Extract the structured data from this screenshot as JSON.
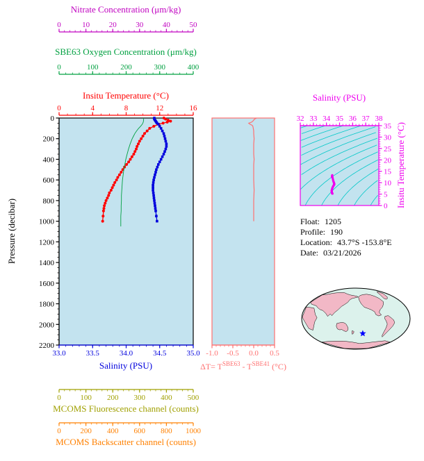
{
  "info": {
    "rows": [
      {
        "label": "Float:",
        "value": "1205"
      },
      {
        "label": "Profile:",
        "value": "190"
      },
      {
        "label": "Location:",
        "value": "43.7°S -153.8°E"
      },
      {
        "label": "Date:",
        "value": "03/21/2026"
      }
    ]
  },
  "map": {
    "star_lon": -153.8,
    "star_lat": -43.7
  },
  "colors": {
    "nitrate": "#c000c0",
    "oxygen": "#00a040",
    "temperature": "#ff0000",
    "salinity": "#0000dd",
    "fluorescence": "#a0a000",
    "backscatter": "#ff8000",
    "deltaT": "#ff7070",
    "ts": "#ee00ee",
    "pressure": "#000000",
    "plot_bg": "#c3e3ef",
    "contour": "#00c8c8",
    "map_land": "#f2b8c6",
    "map_ocean": "#dcf2ec",
    "star": "#0000ff"
  },
  "chart_data": [
    {
      "type": "line",
      "name": "profile-plot",
      "ylabel": "Pressure (decibar)",
      "ylim": [
        0,
        2200
      ],
      "yticks": [
        "0",
        "200",
        "400",
        "600",
        "800",
        "1000",
        "1200",
        "1400",
        "1600",
        "1800",
        "2000",
        "2200"
      ],
      "axes": {
        "nitrate": {
          "label": "Nitrate Concentration (μm/kg)",
          "lim": [
            0,
            50
          ],
          "ticks": [
            "0",
            "10",
            "20",
            "30",
            "40",
            "50"
          ]
        },
        "oxygen": {
          "label": "SBE63 Oxygen Concentration (μm/kg)",
          "lim": [
            0,
            400
          ],
          "ticks": [
            "0",
            "100",
            "200",
            "300",
            "400"
          ]
        },
        "temperature": {
          "label": "Insitu Temperature (°C)",
          "lim": [
            0,
            16
          ],
          "ticks": [
            "0",
            "4",
            "8",
            "12",
            "16"
          ]
        },
        "salinity": {
          "label": "Salinity (PSU)",
          "lim": [
            33,
            35
          ],
          "ticks": [
            "33.0",
            "33.5",
            "34.0",
            "34.5",
            "35.0"
          ]
        },
        "fluorescence": {
          "label": "MCOMS Fluorescence channel (counts)",
          "lim": [
            0,
            500
          ],
          "ticks": [
            "0",
            "100",
            "200",
            "300",
            "400",
            "500"
          ]
        },
        "backscatter": {
          "label": "MCOMS Backscatter channel (counts)",
          "lim": [
            0,
            1000
          ],
          "ticks": [
            "0",
            "200",
            "400",
            "600",
            "800",
            "1000"
          ]
        }
      },
      "series": [
        {
          "name": "temperature",
          "axis": "temperature",
          "marker": "circle",
          "points": [
            [
              0,
              12.5
            ],
            [
              10,
              12.7
            ],
            [
              20,
              13.0
            ],
            [
              30,
              13.3
            ],
            [
              40,
              12.9
            ],
            [
              50,
              12.4
            ],
            [
              60,
              11.9
            ],
            [
              80,
              11.3
            ],
            [
              100,
              10.8
            ],
            [
              125,
              10.5
            ],
            [
              150,
              10.2
            ],
            [
              175,
              10.0
            ],
            [
              200,
              9.8
            ],
            [
              225,
              9.6
            ],
            [
              250,
              9.45
            ],
            [
              275,
              9.3
            ],
            [
              300,
              9.2
            ],
            [
              325,
              9.05
            ],
            [
              350,
              8.9
            ],
            [
              375,
              8.7
            ],
            [
              400,
              8.5
            ],
            [
              425,
              8.3
            ],
            [
              450,
              8.05
            ],
            [
              475,
              7.8
            ],
            [
              500,
              7.6
            ],
            [
              525,
              7.4
            ],
            [
              550,
              7.2
            ],
            [
              575,
              7.0
            ],
            [
              600,
              6.85
            ],
            [
              625,
              6.65
            ],
            [
              650,
              6.5
            ],
            [
              675,
              6.35
            ],
            [
              700,
              6.2
            ],
            [
              725,
              6.0
            ],
            [
              750,
              5.9
            ],
            [
              775,
              5.75
            ],
            [
              800,
              5.6
            ],
            [
              825,
              5.5
            ],
            [
              850,
              5.4
            ],
            [
              875,
              5.35
            ],
            [
              900,
              5.3
            ],
            [
              950,
              5.25
            ],
            [
              1000,
              5.2
            ]
          ]
        },
        {
          "name": "salinity",
          "axis": "salinity",
          "marker": "square",
          "points": [
            [
              0,
              34.42
            ],
            [
              10,
              34.42
            ],
            [
              20,
              34.43
            ],
            [
              30,
              34.44
            ],
            [
              40,
              34.45
            ],
            [
              50,
              34.46
            ],
            [
              60,
              34.48
            ],
            [
              80,
              34.5
            ],
            [
              100,
              34.52
            ],
            [
              125,
              34.54
            ],
            [
              150,
              34.56
            ],
            [
              175,
              34.57
            ],
            [
              200,
              34.58
            ],
            [
              225,
              34.59
            ],
            [
              250,
              34.6
            ],
            [
              275,
              34.6
            ],
            [
              300,
              34.59
            ],
            [
              325,
              34.575
            ],
            [
              350,
              34.56
            ],
            [
              375,
              34.54
            ],
            [
              400,
              34.52
            ],
            [
              425,
              34.5
            ],
            [
              450,
              34.48
            ],
            [
              475,
              34.465
            ],
            [
              500,
              34.45
            ],
            [
              525,
              34.44
            ],
            [
              550,
              34.43
            ],
            [
              575,
              34.42
            ],
            [
              600,
              34.41
            ],
            [
              625,
              34.405
            ],
            [
              650,
              34.4
            ],
            [
              675,
              34.4
            ],
            [
              700,
              34.4
            ],
            [
              725,
              34.405
            ],
            [
              750,
              34.41
            ],
            [
              775,
              34.415
            ],
            [
              800,
              34.42
            ],
            [
              825,
              34.425
            ],
            [
              850,
              34.43
            ],
            [
              875,
              34.435
            ],
            [
              900,
              34.44
            ],
            [
              950,
              34.45
            ],
            [
              1000,
              34.46
            ]
          ]
        },
        {
          "name": "oxygen",
          "axis": "oxygen",
          "marker": "none",
          "points": [
            [
              0,
              252
            ],
            [
              20,
              252
            ],
            [
              40,
              251
            ],
            [
              60,
              248
            ],
            [
              80,
              243
            ],
            [
              100,
              237
            ],
            [
              125,
              231
            ],
            [
              150,
              226
            ],
            [
              175,
              222
            ],
            [
              200,
              218
            ],
            [
              250,
              212
            ],
            [
              300,
              207
            ],
            [
              350,
              203
            ],
            [
              400,
              199
            ],
            [
              450,
              196
            ],
            [
              500,
              193
            ],
            [
              550,
              191
            ],
            [
              600,
              189
            ],
            [
              650,
              188
            ],
            [
              700,
              187
            ],
            [
              750,
              186
            ],
            [
              800,
              186
            ],
            [
              850,
              185
            ],
            [
              900,
              185
            ],
            [
              950,
              184
            ],
            [
              1000,
              184
            ],
            [
              1050,
              184
            ]
          ]
        }
      ]
    },
    {
      "type": "line",
      "name": "delta-t-plot",
      "xlabel_parts": {
        "prefix": "ΔT= T",
        "sup1": "SBE63",
        "mid": " - T",
        "sup2": "SBE41",
        "suffix": " (°C)"
      },
      "xlim": [
        -1.0,
        0.5
      ],
      "xticks": [
        "-1.0",
        "-0.5",
        "0.0",
        "0.5"
      ],
      "ylim": [
        0,
        2200
      ],
      "points": [
        [
          0,
          0.07
        ],
        [
          10,
          0.02
        ],
        [
          20,
          0.0
        ],
        [
          30,
          -0.02
        ],
        [
          40,
          -0.05
        ],
        [
          50,
          -0.12
        ],
        [
          60,
          -0.09
        ],
        [
          70,
          -0.04
        ],
        [
          80,
          -0.02
        ],
        [
          100,
          -0.01
        ],
        [
          125,
          0.0
        ],
        [
          150,
          0.0
        ],
        [
          200,
          0.01
        ],
        [
          250,
          0.0
        ],
        [
          300,
          0.0
        ],
        [
          350,
          0.0
        ],
        [
          400,
          0.01
        ],
        [
          450,
          0.0
        ],
        [
          500,
          0.0
        ],
        [
          600,
          0.0
        ],
        [
          700,
          0.01
        ],
        [
          800,
          0.0
        ],
        [
          900,
          0.0
        ],
        [
          1000,
          0.0
        ]
      ]
    },
    {
      "type": "scatter",
      "name": "ts-diagram",
      "xlabel": "Salinity (PSU)",
      "xlim": [
        32,
        38
      ],
      "xticks": [
        "32",
        "33",
        "34",
        "35",
        "36",
        "37",
        "38"
      ],
      "ylabel": "Insitu Temperature (°C)",
      "ylim": [
        0,
        35
      ],
      "yticks": [
        "0",
        "5",
        "10",
        "15",
        "20",
        "25",
        "30",
        "35"
      ],
      "isopycnal_levels": [
        18,
        19,
        20,
        21,
        22,
        23,
        24,
        25,
        26,
        27,
        28,
        29,
        30
      ],
      "points": [
        [
          34.42,
          12.5
        ],
        [
          34.42,
          12.7
        ],
        [
          34.43,
          13.0
        ],
        [
          34.44,
          13.3
        ],
        [
          34.45,
          12.9
        ],
        [
          34.46,
          12.4
        ],
        [
          34.48,
          11.9
        ],
        [
          34.5,
          11.3
        ],
        [
          34.52,
          10.8
        ],
        [
          34.54,
          10.5
        ],
        [
          34.56,
          10.2
        ],
        [
          34.57,
          10.0
        ],
        [
          34.58,
          9.8
        ],
        [
          34.59,
          9.6
        ],
        [
          34.6,
          9.45
        ],
        [
          34.6,
          9.3
        ],
        [
          34.59,
          9.2
        ],
        [
          34.575,
          9.05
        ],
        [
          34.56,
          8.9
        ],
        [
          34.54,
          8.7
        ],
        [
          34.52,
          8.5
        ],
        [
          34.5,
          8.3
        ],
        [
          34.48,
          8.05
        ],
        [
          34.465,
          7.8
        ],
        [
          34.45,
          7.6
        ],
        [
          34.44,
          7.4
        ],
        [
          34.43,
          7.2
        ],
        [
          34.42,
          7.0
        ],
        [
          34.41,
          6.85
        ],
        [
          34.405,
          6.65
        ],
        [
          34.4,
          6.5
        ],
        [
          34.4,
          6.35
        ],
        [
          34.4,
          6.2
        ],
        [
          34.405,
          6.0
        ],
        [
          34.41,
          5.9
        ],
        [
          34.415,
          5.75
        ],
        [
          34.42,
          5.6
        ],
        [
          34.425,
          5.5
        ],
        [
          34.43,
          5.4
        ],
        [
          34.435,
          5.35
        ],
        [
          34.44,
          5.3
        ],
        [
          34.45,
          5.25
        ],
        [
          34.46,
          5.2
        ]
      ]
    }
  ]
}
